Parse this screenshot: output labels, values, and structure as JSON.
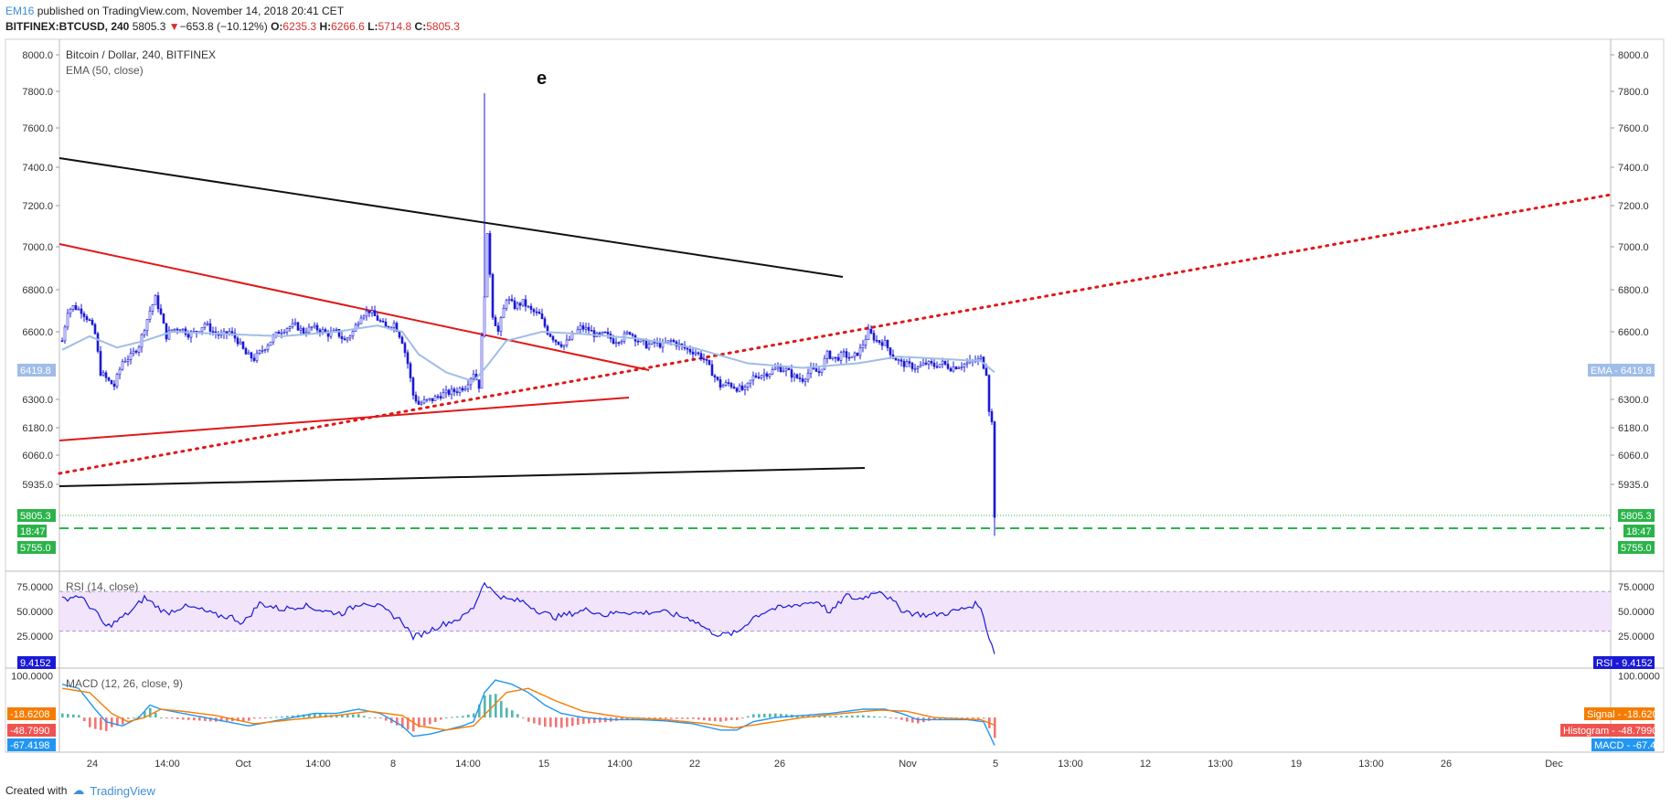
{
  "header": {
    "author": "EM16",
    "published": "published on TradingView.com, November 14, 2018 20:41 CET",
    "symbol": "BITFINEX:BTCUSD, 240",
    "price": "5805.3",
    "arrow": "▼",
    "change": "−653.8 (−10.12%)",
    "o_label": "O:",
    "o": "6235.3",
    "h_label": "H:",
    "h": "6266.6",
    "l_label": "L:",
    "l": "5714.8",
    "c_label": "C:",
    "c": "5805.3"
  },
  "footer": {
    "created": "Created with",
    "brand": "TradingView"
  },
  "colors": {
    "candle": "#1a1ad6",
    "ema": "#9fbde8",
    "red": "#e01818",
    "black": "#111111",
    "green": "#2bb34a",
    "rsi_bg": "#f1e4fb",
    "macd_line": "#2196f3",
    "signal_line": "#f57c00",
    "hist_up": "#26a69a",
    "hist_dn": "#ef5350"
  },
  "chart_data": [
    {
      "type": "candlestick",
      "legend_title": "Bitcoin / Dollar, 240, BITFINEX",
      "legend_ema": "EMA (50, close)",
      "annotation": "e",
      "ylim": [
        5700,
        8080
      ],
      "y_ticks": [
        "8000.0",
        "7800.0",
        "7600.0",
        "7400.0",
        "7200.0",
        "7000.0",
        "6800.0",
        "6600.0",
        "6300.0",
        "6180.0",
        "6060.0",
        "5935.0"
      ],
      "y_tick_values": [
        8000,
        7800,
        7600,
        7400,
        7200,
        7000,
        6800,
        6600,
        6300,
        6180,
        6060,
        5935
      ],
      "x_ticks": [
        "24",
        "14:00",
        "Oct",
        "14:00",
        "8",
        "14:00",
        "15",
        "14:00",
        "22",
        "26",
        "Nov",
        "5",
        "13:00",
        "12",
        "13:00",
        "19",
        "13:00",
        "26",
        "Dec"
      ],
      "labels": {
        "ema_value": "6419.8",
        "ema_tag": "EMA",
        "last_price": "5805.3",
        "countdown": "18:47",
        "level": "5755.0"
      },
      "close_series": [
        [
          0,
          6560
        ],
        [
          2,
          6700
        ],
        [
          4,
          6720
        ],
        [
          7,
          6700
        ],
        [
          10,
          6650
        ],
        [
          12,
          6590
        ],
        [
          14,
          6420
        ],
        [
          17,
          6380
        ],
        [
          19,
          6360
        ],
        [
          22,
          6470
        ],
        [
          25,
          6490
        ],
        [
          28,
          6540
        ],
        [
          30,
          6620
        ],
        [
          32,
          6700
        ],
        [
          34,
          6760
        ],
        [
          36,
          6680
        ],
        [
          38,
          6580
        ],
        [
          40,
          6610
        ],
        [
          43,
          6620
        ],
        [
          46,
          6590
        ],
        [
          49,
          6600
        ],
        [
          52,
          6640
        ],
        [
          55,
          6600
        ],
        [
          58,
          6580
        ],
        [
          61,
          6600
        ],
        [
          64,
          6560
        ],
        [
          67,
          6500
        ],
        [
          70,
          6480
        ],
        [
          73,
          6520
        ],
        [
          76,
          6560
        ],
        [
          79,
          6600
        ],
        [
          82,
          6620
        ],
        [
          85,
          6630
        ],
        [
          88,
          6600
        ],
        [
          91,
          6620
        ],
        [
          94,
          6610
        ],
        [
          97,
          6590
        ],
        [
          100,
          6600
        ],
        [
          103,
          6560
        ],
        [
          106,
          6600
        ],
        [
          109,
          6680
        ],
        [
          112,
          6700
        ],
        [
          115,
          6660
        ],
        [
          118,
          6620
        ],
        [
          121,
          6640
        ],
        [
          124,
          6560
        ],
        [
          126,
          6460
        ],
        [
          128,
          6320
        ],
        [
          130,
          6280
        ],
        [
          132,
          6290
        ],
        [
          135,
          6300
        ],
        [
          138,
          6320
        ],
        [
          141,
          6330
        ],
        [
          144,
          6340
        ],
        [
          147,
          6360
        ],
        [
          150,
          6420
        ],
        [
          152,
          6360
        ],
        [
          154,
          6780
        ],
        [
          155,
          7050
        ],
        [
          156,
          6880
        ],
        [
          157,
          6680
        ],
        [
          159,
          6600
        ],
        [
          162,
          6760
        ],
        [
          165,
          6720
        ],
        [
          168,
          6740
        ],
        [
          171,
          6700
        ],
        [
          174,
          6680
        ],
        [
          177,
          6600
        ],
        [
          180,
          6560
        ],
        [
          183,
          6540
        ],
        [
          186,
          6580
        ],
        [
          189,
          6620
        ],
        [
          192,
          6610
        ],
        [
          195,
          6580
        ],
        [
          198,
          6590
        ],
        [
          201,
          6560
        ],
        [
          204,
          6570
        ],
        [
          207,
          6600
        ],
        [
          210,
          6560
        ],
        [
          213,
          6540
        ],
        [
          216,
          6550
        ],
        [
          219,
          6540
        ],
        [
          222,
          6560
        ],
        [
          225,
          6540
        ],
        [
          228,
          6520
        ],
        [
          231,
          6510
        ],
        [
          234,
          6480
        ],
        [
          237,
          6420
        ],
        [
          240,
          6360
        ],
        [
          243,
          6370
        ],
        [
          246,
          6350
        ],
        [
          249,
          6340
        ],
        [
          252,
          6400
        ],
        [
          255,
          6410
        ],
        [
          258,
          6420
        ],
        [
          261,
          6440
        ],
        [
          264,
          6430
        ],
        [
          267,
          6400
        ],
        [
          270,
          6390
        ],
        [
          273,
          6430
        ],
        [
          276,
          6420
        ],
        [
          279,
          6500
        ],
        [
          282,
          6480
        ],
        [
          285,
          6500
        ],
        [
          288,
          6480
        ],
        [
          291,
          6520
        ],
        [
          294,
          6600
        ],
        [
          297,
          6560
        ],
        [
          300,
          6550
        ],
        [
          303,
          6490
        ],
        [
          306,
          6460
        ],
        [
          309,
          6450
        ],
        [
          312,
          6440
        ],
        [
          315,
          6460
        ],
        [
          318,
          6450
        ],
        [
          321,
          6460
        ],
        [
          324,
          6440
        ],
        [
          327,
          6450
        ],
        [
          330,
          6460
        ],
        [
          333,
          6470
        ],
        [
          335,
          6480
        ],
        [
          337,
          6420
        ],
        [
          338,
          6260
        ],
        [
          339,
          6200
        ],
        [
          340,
          5805
        ]
      ],
      "events": {
        "spike_high": 7790,
        "spike_index": 154,
        "last_low": 5714.8
      },
      "ema_series": [
        [
          0,
          6520
        ],
        [
          10,
          6580
        ],
        [
          20,
          6530
        ],
        [
          30,
          6560
        ],
        [
          40,
          6600
        ],
        [
          60,
          6590
        ],
        [
          80,
          6580
        ],
        [
          100,
          6600
        ],
        [
          115,
          6630
        ],
        [
          124,
          6600
        ],
        [
          130,
          6500
        ],
        [
          140,
          6420
        ],
        [
          150,
          6380
        ],
        [
          155,
          6450
        ],
        [
          162,
          6560
        ],
        [
          175,
          6600
        ],
        [
          190,
          6590
        ],
        [
          210,
          6570
        ],
        [
          230,
          6530
        ],
        [
          250,
          6460
        ],
        [
          270,
          6440
        ],
        [
          290,
          6460
        ],
        [
          305,
          6490
        ],
        [
          320,
          6480
        ],
        [
          335,
          6470
        ],
        [
          340,
          6420
        ]
      ]
    },
    {
      "type": "line",
      "legend": "RSI (14, close)",
      "ylim": [
        0,
        85
      ],
      "y_ticks": [
        "75.0000",
        "50.0000",
        "25.0000"
      ],
      "y_tick_values": [
        75,
        50,
        25
      ],
      "band": [
        30,
        70
      ],
      "last": "9.4152",
      "last_tag": "RSI",
      "series": [
        [
          0,
          62
        ],
        [
          6,
          66
        ],
        [
          12,
          50
        ],
        [
          16,
          34
        ],
        [
          20,
          40
        ],
        [
          26,
          52
        ],
        [
          30,
          64
        ],
        [
          34,
          56
        ],
        [
          38,
          48
        ],
        [
          44,
          55
        ],
        [
          50,
          52
        ],
        [
          56,
          46
        ],
        [
          62,
          44
        ],
        [
          66,
          38
        ],
        [
          72,
          58
        ],
        [
          80,
          52
        ],
        [
          88,
          56
        ],
        [
          96,
          50
        ],
        [
          102,
          48
        ],
        [
          110,
          60
        ],
        [
          116,
          54
        ],
        [
          124,
          40
        ],
        [
          128,
          24
        ],
        [
          132,
          28
        ],
        [
          138,
          36
        ],
        [
          146,
          44
        ],
        [
          150,
          54
        ],
        [
          154,
          80
        ],
        [
          157,
          70
        ],
        [
          162,
          62
        ],
        [
          168,
          60
        ],
        [
          174,
          50
        ],
        [
          180,
          44
        ],
        [
          186,
          48
        ],
        [
          192,
          52
        ],
        [
          198,
          46
        ],
        [
          204,
          50
        ],
        [
          210,
          48
        ],
        [
          218,
          50
        ],
        [
          224,
          46
        ],
        [
          230,
          42
        ],
        [
          236,
          30
        ],
        [
          240,
          26
        ],
        [
          246,
          28
        ],
        [
          252,
          44
        ],
        [
          258,
          52
        ],
        [
          264,
          54
        ],
        [
          270,
          58
        ],
        [
          276,
          60
        ],
        [
          280,
          48
        ],
        [
          286,
          66
        ],
        [
          290,
          62
        ],
        [
          294,
          66
        ],
        [
          298,
          72
        ],
        [
          302,
          62
        ],
        [
          306,
          52
        ],
        [
          310,
          48
        ],
        [
          316,
          46
        ],
        [
          322,
          48
        ],
        [
          328,
          52
        ],
        [
          334,
          58
        ],
        [
          336,
          44
        ],
        [
          338,
          24
        ],
        [
          340,
          9
        ]
      ]
    },
    {
      "type": "bar",
      "legend": "MACD (12, 26, close, 9)",
      "ylim": [
        -70,
        110
      ],
      "y_ticks": [
        "100.0000"
      ],
      "y_tick_values": [
        100
      ],
      "labels": {
        "signal_tag": "Signal",
        "signal": "-18.6208",
        "hist_tag": "Histogram",
        "hist": "-48.7990",
        "macd_tag": "MACD",
        "macd": "-67.4198"
      },
      "macd_series": [
        [
          0,
          80
        ],
        [
          6,
          70
        ],
        [
          12,
          20
        ],
        [
          16,
          -10
        ],
        [
          22,
          -20
        ],
        [
          28,
          0
        ],
        [
          32,
          30
        ],
        [
          36,
          20
        ],
        [
          44,
          10
        ],
        [
          52,
          0
        ],
        [
          60,
          -10
        ],
        [
          68,
          -20
        ],
        [
          76,
          -10
        ],
        [
          84,
          0
        ],
        [
          92,
          10
        ],
        [
          100,
          10
        ],
        [
          108,
          20
        ],
        [
          116,
          10
        ],
        [
          124,
          -20
        ],
        [
          128,
          -45
        ],
        [
          134,
          -40
        ],
        [
          140,
          -30
        ],
        [
          146,
          -20
        ],
        [
          150,
          -10
        ],
        [
          154,
          60
        ],
        [
          158,
          90
        ],
        [
          164,
          80
        ],
        [
          170,
          60
        ],
        [
          176,
          30
        ],
        [
          182,
          10
        ],
        [
          190,
          0
        ],
        [
          200,
          -5
        ],
        [
          210,
          -5
        ],
        [
          220,
          -8
        ],
        [
          230,
          -15
        ],
        [
          240,
          -30
        ],
        [
          246,
          -30
        ],
        [
          252,
          -10
        ],
        [
          260,
          0
        ],
        [
          270,
          5
        ],
        [
          280,
          10
        ],
        [
          292,
          20
        ],
        [
          300,
          20
        ],
        [
          306,
          10
        ],
        [
          312,
          -5
        ],
        [
          320,
          -5
        ],
        [
          330,
          -5
        ],
        [
          336,
          -10
        ],
        [
          340,
          -67
        ]
      ],
      "signal_series": [
        [
          0,
          70
        ],
        [
          10,
          60
        ],
        [
          18,
          10
        ],
        [
          24,
          -10
        ],
        [
          30,
          0
        ],
        [
          36,
          20
        ],
        [
          44,
          15
        ],
        [
          56,
          5
        ],
        [
          70,
          -15
        ],
        [
          84,
          -5
        ],
        [
          100,
          5
        ],
        [
          112,
          15
        ],
        [
          124,
          5
        ],
        [
          130,
          -20
        ],
        [
          140,
          -30
        ],
        [
          150,
          -20
        ],
        [
          156,
          20
        ],
        [
          162,
          60
        ],
        [
          170,
          70
        ],
        [
          180,
          40
        ],
        [
          190,
          15
        ],
        [
          205,
          0
        ],
        [
          220,
          -5
        ],
        [
          235,
          -15
        ],
        [
          245,
          -25
        ],
        [
          255,
          -15
        ],
        [
          270,
          0
        ],
        [
          285,
          10
        ],
        [
          298,
          18
        ],
        [
          308,
          15
        ],
        [
          318,
          0
        ],
        [
          335,
          -5
        ],
        [
          340,
          -18
        ]
      ]
    }
  ]
}
